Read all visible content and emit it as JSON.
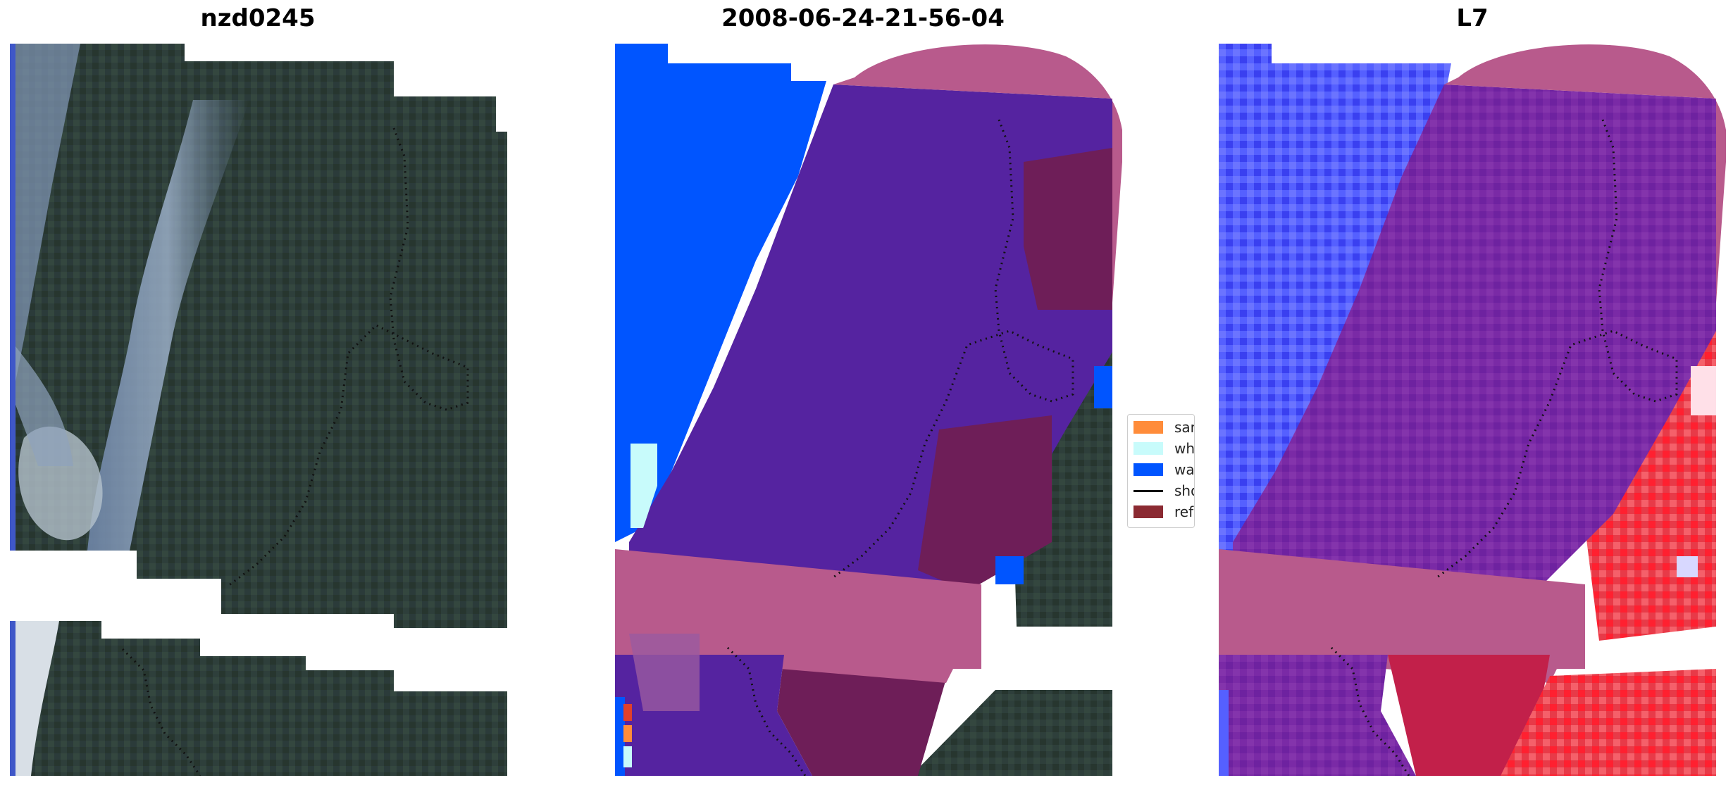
{
  "titles": {
    "left": "nzd0245",
    "middle": "2008-06-24-21-56-04",
    "right": "L7"
  },
  "legend": {
    "items": [
      {
        "label": "sand",
        "color": "#ff8c3a",
        "kind": "patch"
      },
      {
        "label": "whitewater",
        "color": "#c8fbfb",
        "kind": "patch"
      },
      {
        "label": "water",
        "color": "#0055ff",
        "kind": "patch"
      },
      {
        "label": "shoreline",
        "color": "#111111",
        "kind": "line"
      },
      {
        "label": "reference",
        "color": "#8b2a32",
        "kind": "patch"
      }
    ]
  },
  "colors": {
    "land": "#2c3e3a",
    "cloud": "#8da0b3",
    "water": "#0055ff",
    "classified_overlay": "#5a1fa0",
    "reference_overlay": "#b85a8c",
    "red_index": "#e8202a",
    "blue_index": "#3a3cff"
  }
}
